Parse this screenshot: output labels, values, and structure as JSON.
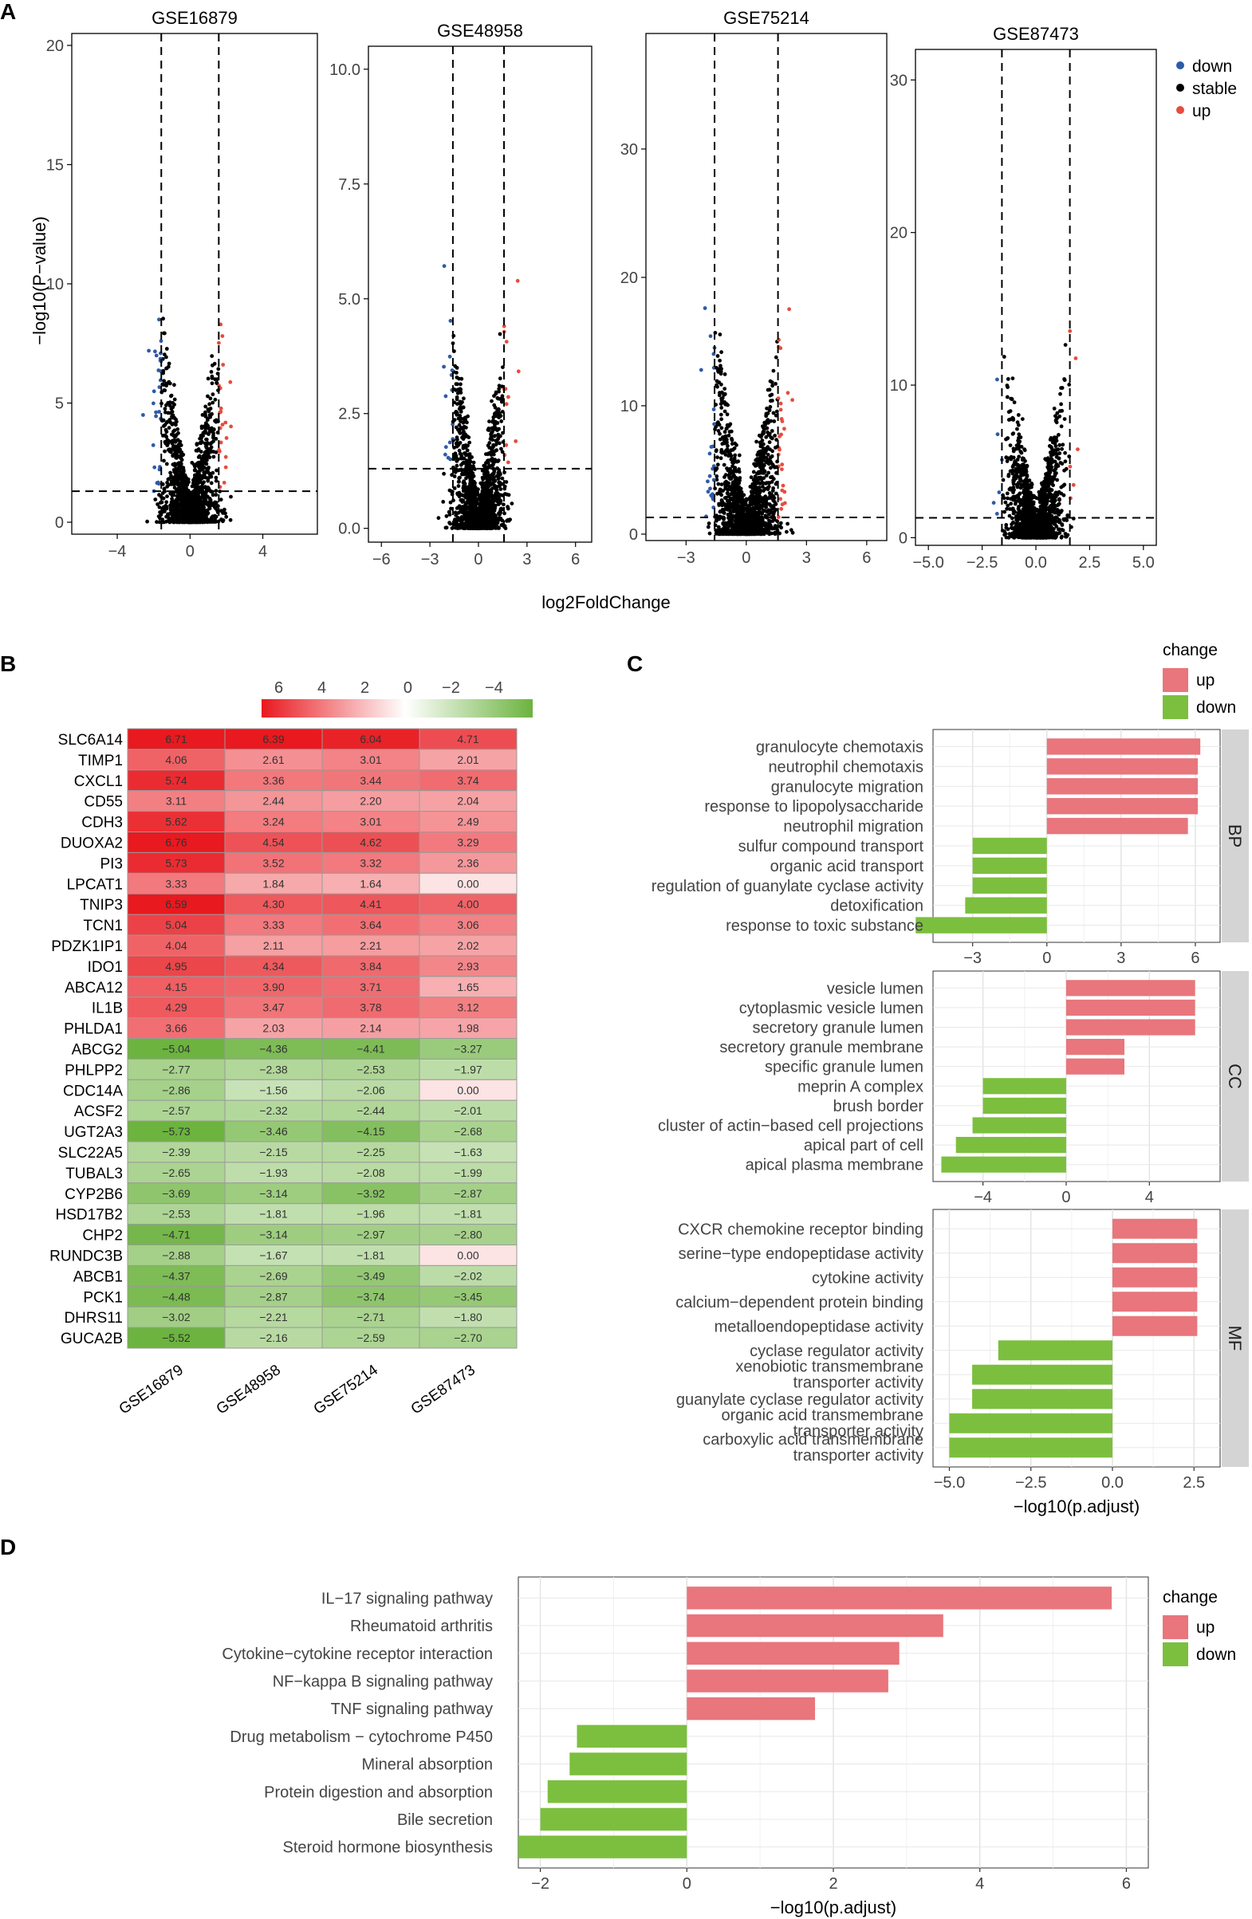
{
  "colors": {
    "up": "#e74c3c",
    "down": "#2e5aa8",
    "stable": "#000000",
    "bar_up": "#e8767c",
    "bar_down": "#7cbf3e",
    "heat_hi": "#e8191f",
    "heat_lo": "#6cb33f"
  },
  "panels": {
    "A": "A",
    "B": "B",
    "C": "C",
    "D": "D"
  },
  "chart_data": [
    {
      "type": "scatter",
      "panel": "A",
      "ylabel": "−log10(P−value)",
      "xlabel": "log2FoldChange",
      "legend": {
        "position": "top-right",
        "items": [
          {
            "name": "down",
            "color": "#2e5aa8"
          },
          {
            "name": "stable",
            "color": "#000000"
          },
          {
            "name": "up",
            "color": "#e74c3c"
          }
        ]
      },
      "subplots": [
        {
          "title": "GSE16879",
          "xlim": [
            -6.5,
            7.0
          ],
          "ylim": [
            -0.5,
            20.5
          ],
          "xticks": [
            -4,
            0,
            4
          ],
          "xtick_labels": [
            "−4",
            "0",
            "4"
          ],
          "yticks": [
            0,
            5,
            10,
            15,
            20
          ],
          "ytick_labels": [
            "0",
            "5",
            "10",
            "15",
            "20"
          ],
          "fc_cut": 1.58,
          "p_cut": 1.3
        },
        {
          "title": "GSE48958",
          "xlim": [
            -6.8,
            7.0
          ],
          "ylim": [
            -0.3,
            10.5
          ],
          "xticks": [
            -6,
            -3,
            0,
            3,
            6
          ],
          "xtick_labels": [
            "−6",
            "−3",
            "0",
            "3",
            "6"
          ],
          "yticks": [
            0,
            2.5,
            5,
            7.5,
            10
          ],
          "ytick_labels": [
            "0.0",
            "2.5",
            "5.0",
            "7.5",
            "10.0"
          ],
          "fc_cut": 1.58,
          "p_cut": 1.3
        },
        {
          "title": "GSE75214",
          "xlim": [
            -5.0,
            7.0
          ],
          "ylim": [
            -0.5,
            39
          ],
          "xticks": [
            -3,
            0,
            3,
            6
          ],
          "xtick_labels": [
            "−3",
            "0",
            "3",
            "6"
          ],
          "yticks": [
            0,
            10,
            20,
            30
          ],
          "ytick_labels": [
            "0",
            "10",
            "20",
            "30"
          ],
          "fc_cut": 1.58,
          "p_cut": 1.3
        },
        {
          "title": "GSE87473",
          "xlim": [
            -5.6,
            5.6
          ],
          "ylim": [
            -0.5,
            32
          ],
          "xticks": [
            -5,
            -2.5,
            0,
            2.5,
            5
          ],
          "xtick_labels": [
            "−5.0",
            "−2.5",
            "0.0",
            "2.5",
            "5.0"
          ],
          "yticks": [
            0,
            10,
            20,
            30
          ],
          "ytick_labels": [
            "0",
            "10",
            "20",
            "30"
          ],
          "fc_cut": 1.58,
          "p_cut": 1.3
        }
      ]
    },
    {
      "type": "heatmap",
      "panel": "B",
      "colorbar": {
        "ticks": [
          6,
          4,
          2,
          0,
          -2,
          -4
        ],
        "tick_labels": [
          "6",
          "4",
          "2",
          "0",
          "−2",
          "−4"
        ],
        "range": [
          -5.8,
          6.8
        ]
      },
      "columns": [
        "GSE16879",
        "GSE48958",
        "GSE75214",
        "GSE87473"
      ],
      "rows": [
        "SLC6A14",
        "TIMP1",
        "CXCL1",
        "CD55",
        "CDH3",
        "DUOXA2",
        "PI3",
        "LPCAT1",
        "TNIP3",
        "TCN1",
        "PDZK1IP1",
        "IDO1",
        "ABCA12",
        "IL1B",
        "PHLDA1",
        "ABCG2",
        "PHLPP2",
        "CDC14A",
        "ACSF2",
        "UGT2A3",
        "SLC22A5",
        "TUBAL3",
        "CYP2B6",
        "HSD17B2",
        "CHP2",
        "RUNDC3B",
        "ABCB1",
        "PCK1",
        "DHRS11",
        "GUCA2B"
      ],
      "values": [
        [
          6.71,
          6.39,
          6.04,
          4.71
        ],
        [
          4.06,
          2.61,
          3.01,
          2.01
        ],
        [
          5.74,
          3.36,
          3.44,
          3.74
        ],
        [
          3.11,
          2.44,
          2.2,
          2.04
        ],
        [
          5.62,
          3.24,
          3.01,
          2.49
        ],
        [
          6.76,
          4.54,
          4.62,
          3.29
        ],
        [
          5.73,
          3.52,
          3.32,
          2.36
        ],
        [
          3.33,
          1.84,
          1.64,
          0.0
        ],
        [
          6.59,
          4.3,
          4.41,
          4.0
        ],
        [
          5.04,
          3.33,
          3.64,
          3.06
        ],
        [
          4.04,
          2.11,
          2.21,
          2.02
        ],
        [
          4.95,
          4.34,
          3.84,
          2.93
        ],
        [
          4.15,
          3.9,
          3.71,
          1.65
        ],
        [
          4.29,
          3.47,
          3.78,
          3.12
        ],
        [
          3.66,
          2.03,
          2.14,
          1.98
        ],
        [
          -5.04,
          -4.36,
          -4.41,
          -3.27
        ],
        [
          -2.77,
          -2.38,
          -2.53,
          -1.97
        ],
        [
          -2.86,
          -1.56,
          -2.06,
          0.0
        ],
        [
          -2.57,
          -2.32,
          -2.44,
          -2.01
        ],
        [
          -5.73,
          -3.46,
          -4.15,
          -2.68
        ],
        [
          -2.39,
          -2.15,
          -2.25,
          -1.63
        ],
        [
          -2.65,
          -1.93,
          -2.08,
          -1.99
        ],
        [
          -3.69,
          -3.14,
          -3.92,
          -2.87
        ],
        [
          -2.53,
          -1.81,
          -1.96,
          -1.81
        ],
        [
          -4.71,
          -3.14,
          -2.97,
          -2.8
        ],
        [
          -2.88,
          -1.67,
          -1.81,
          0.0
        ],
        [
          -4.37,
          -2.69,
          -3.49,
          -2.02
        ],
        [
          -4.48,
          -2.87,
          -3.74,
          -3.45
        ],
        [
          -3.02,
          -2.21,
          -2.71,
          -1.8
        ],
        [
          -5.52,
          -2.16,
          -2.59,
          -2.7
        ]
      ],
      "labels": [
        [
          "6.71",
          "6.39",
          "6.04",
          "4.71"
        ],
        [
          "4.06",
          "2.61",
          "3.01",
          "2.01"
        ],
        [
          "5.74",
          "3.36",
          "3.44",
          "3.74"
        ],
        [
          "3.11",
          "2.44",
          "2.20",
          "2.04"
        ],
        [
          "5.62",
          "3.24",
          "3.01",
          "2.49"
        ],
        [
          "6.76",
          "4.54",
          "4.62",
          "3.29"
        ],
        [
          "5.73",
          "3.52",
          "3.32",
          "2.36"
        ],
        [
          "3.33",
          "1.84",
          "1.64",
          "0.00"
        ],
        [
          "6.59",
          "4.30",
          "4.41",
          "4.00"
        ],
        [
          "5.04",
          "3.33",
          "3.64",
          "3.06"
        ],
        [
          "4.04",
          "2.11",
          "2.21",
          "2.02"
        ],
        [
          "4.95",
          "4.34",
          "3.84",
          "2.93"
        ],
        [
          "4.15",
          "3.90",
          "3.71",
          "1.65"
        ],
        [
          "4.29",
          "3.47",
          "3.78",
          "3.12"
        ],
        [
          "3.66",
          "2.03",
          "2.14",
          "1.98"
        ],
        [
          "−5.04",
          "−4.36",
          "−4.41",
          "−3.27"
        ],
        [
          "−2.77",
          "−2.38",
          "−2.53",
          "−1.97"
        ],
        [
          "−2.86",
          "−1.56",
          "−2.06",
          "0.00"
        ],
        [
          "−2.57",
          "−2.32",
          "−2.44",
          "−2.01"
        ],
        [
          "−5.73",
          "−3.46",
          "−4.15",
          "−2.68"
        ],
        [
          "−2.39",
          "−2.15",
          "−2.25",
          "−1.63"
        ],
        [
          "−2.65",
          "−1.93",
          "−2.08",
          "−1.99"
        ],
        [
          "−3.69",
          "−3.14",
          "−3.92",
          "−2.87"
        ],
        [
          "−2.53",
          "−1.81",
          "−1.96",
          "−1.81"
        ],
        [
          "−4.71",
          "−3.14",
          "−2.97",
          "−2.80"
        ],
        [
          "−2.88",
          "−1.67",
          "−1.81",
          "0.00"
        ],
        [
          "−4.37",
          "−2.69",
          "−3.49",
          "−2.02"
        ],
        [
          "−4.48",
          "−2.87",
          "−3.74",
          "−3.45"
        ],
        [
          "−3.02",
          "−2.21",
          "−2.71",
          "−1.80"
        ],
        [
          "−5.52",
          "−2.16",
          "−2.59",
          "−2.70"
        ]
      ]
    },
    {
      "type": "bar",
      "panel": "C",
      "orientation": "horizontal",
      "xlabel": "−log10(p.adjust)",
      "legend": {
        "title": "change",
        "position": "top-right",
        "items": [
          {
            "name": "up",
            "color": "#e8767c"
          },
          {
            "name": "down",
            "color": "#7cbf3e"
          }
        ]
      },
      "facets": [
        {
          "name": "BP",
          "xlim": [
            -4.6,
            7.0
          ],
          "xticks": [
            -3,
            0,
            3,
            6
          ],
          "xtick_labels": [
            "−3",
            "0",
            "3",
            "6"
          ],
          "terms": [
            [
              "granulocyte chemotaxis"
            ],
            [
              "neutrophil chemotaxis"
            ],
            [
              "granulocyte migration"
            ],
            [
              "response to lipopolysaccharide"
            ],
            [
              "neutrophil migration"
            ],
            [
              "sulfur compound transport"
            ],
            [
              "organic acid transport"
            ],
            [
              "regulation of guanylate cyclase activity"
            ],
            [
              "detoxification"
            ],
            [
              "response to toxic substance"
            ]
          ],
          "values": [
            6.2,
            6.1,
            6.1,
            6.1,
            5.7,
            -3.0,
            -3.0,
            -3.0,
            -3.3,
            -5.3
          ]
        },
        {
          "name": "CC",
          "xlim": [
            -6.4,
            7.4
          ],
          "xticks": [
            -4,
            0,
            4
          ],
          "xtick_labels": [
            "−4",
            "0",
            "4"
          ],
          "terms": [
            [
              "vesicle lumen"
            ],
            [
              "cytoplasmic vesicle lumen"
            ],
            [
              "secretory granule lumen"
            ],
            [
              "secretory granule membrane"
            ],
            [
              "specific granule lumen"
            ],
            [
              "meprin A complex"
            ],
            [
              "brush border"
            ],
            [
              "cluster of actin−based cell projections"
            ],
            [
              "apical part of cell"
            ],
            [
              "apical plasma membrane"
            ]
          ],
          "values": [
            6.2,
            6.2,
            6.2,
            2.8,
            2.8,
            -4.0,
            -4.0,
            -4.5,
            -5.3,
            -6.0
          ]
        },
        {
          "name": "MF",
          "xlim": [
            -5.5,
            3.3
          ],
          "xticks": [
            -5,
            -2.5,
            0,
            2.5
          ],
          "xtick_labels": [
            "−5.0",
            "−2.5",
            "0.0",
            "2.5"
          ],
          "terms": [
            [
              "CXCR chemokine receptor binding"
            ],
            [
              "serine−type endopeptidase activity"
            ],
            [
              "cytokine activity"
            ],
            [
              "calcium−dependent protein binding"
            ],
            [
              "metalloendopeptidase activity"
            ],
            [
              "cyclase regulator activity"
            ],
            [
              "xenobiotic transmembrane",
              "transporter activity"
            ],
            [
              "guanylate cyclase regulator activity"
            ],
            [
              "organic acid transmembrane",
              "transporter activity"
            ],
            [
              "carboxylic acid transmembrane",
              "transporter activity"
            ]
          ],
          "values": [
            2.6,
            2.6,
            2.6,
            2.6,
            2.6,
            -3.5,
            -4.3,
            -4.3,
            -5.0,
            -5.0
          ]
        }
      ]
    },
    {
      "type": "bar",
      "panel": "D",
      "orientation": "horizontal",
      "xlabel": "−log10(p.adjust)",
      "xlim": [
        -2.3,
        6.3
      ],
      "xticks": [
        -2,
        0,
        2,
        4,
        6
      ],
      "xtick_labels": [
        "−2",
        "0",
        "2",
        "4",
        "6"
      ],
      "legend": {
        "title": "change",
        "position": "top-right",
        "items": [
          {
            "name": "up",
            "color": "#e8767c"
          },
          {
            "name": "down",
            "color": "#7cbf3e"
          }
        ]
      },
      "terms": [
        "IL−17 signaling pathway",
        "Rheumatoid arthritis",
        "Cytokine−cytokine receptor interaction",
        "NF−kappa B signaling pathway",
        "TNF signaling pathway",
        "Drug metabolism − cytochrome P450",
        "Mineral absorption",
        "Protein digestion and absorption",
        "Bile secretion",
        "Steroid hormone biosynthesis"
      ],
      "values": [
        5.8,
        3.5,
        2.9,
        2.75,
        1.75,
        -1.5,
        -1.6,
        -1.9,
        -2.0,
        -2.3
      ]
    }
  ]
}
